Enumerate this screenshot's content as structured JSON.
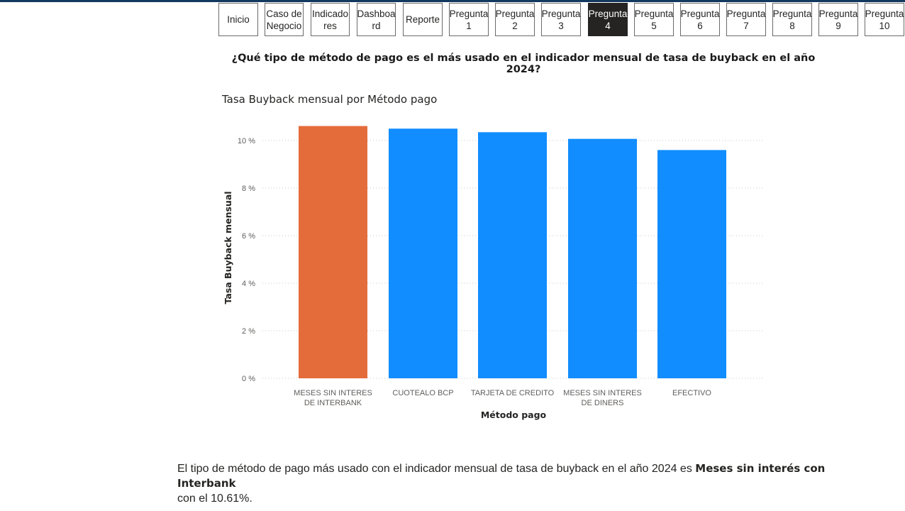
{
  "nav": {
    "buttons": [
      {
        "label": "Inicio",
        "active": false
      },
      {
        "label": "Caso de\nNegocio",
        "active": false
      },
      {
        "label": "Indicado\nres",
        "active": false
      },
      {
        "label": "Dashboa\nrd",
        "active": false
      },
      {
        "label": "Reporte",
        "active": false
      },
      {
        "label": "Pregunta\n1",
        "active": false
      },
      {
        "label": "Pregunta\n2",
        "active": false
      },
      {
        "label": "Pregunta\n3",
        "active": false
      },
      {
        "label": "Pregunta\n4",
        "active": true
      },
      {
        "label": "Pregunta\n5",
        "active": false
      },
      {
        "label": "Pregunta\n6",
        "active": false
      },
      {
        "label": "Pregunta\n7",
        "active": false
      },
      {
        "label": "Pregunta\n8",
        "active": false
      },
      {
        "label": "Pregunta\n9",
        "active": false
      },
      {
        "label": "Pregunta\n10",
        "active": false
      }
    ]
  },
  "question": "¿Qué tipo de método de pago es el más usado en el indicador mensual de tasa de buyback en el año 2024?",
  "chart_data": {
    "type": "bar",
    "title": "Tasa Buyback mensual por Método pago",
    "xlabel": "Método pago",
    "ylabel": "Tasa Buyback mensual",
    "categories": [
      "MESES SIN INTERES\nDE INTERBANK",
      "CUOTEALO BCP",
      "TARJETA DE CREDITO",
      "MESES SIN INTERES\nDE DINERS",
      "EFECTIVO"
    ],
    "values": [
      10.61,
      10.5,
      10.35,
      10.07,
      9.6
    ],
    "ylim": [
      0,
      10
    ],
    "yticks": [
      "0 %",
      "2 %",
      "4 %",
      "6 %",
      "8 %",
      "10 %"
    ],
    "ytick_values": [
      0,
      2,
      4,
      6,
      8,
      10
    ],
    "grid": true,
    "colors": {
      "highlight": "#e46c3a",
      "default": "#118dff"
    },
    "highlight_index": 0
  },
  "answer": {
    "prefix": "El tipo de método de pago más usado con el indicador mensual de tasa de buyback en el año 2024 es ",
    "highlight": "Meses sin interés con Interbank",
    "suffix": "\ncon el 10.61%."
  }
}
